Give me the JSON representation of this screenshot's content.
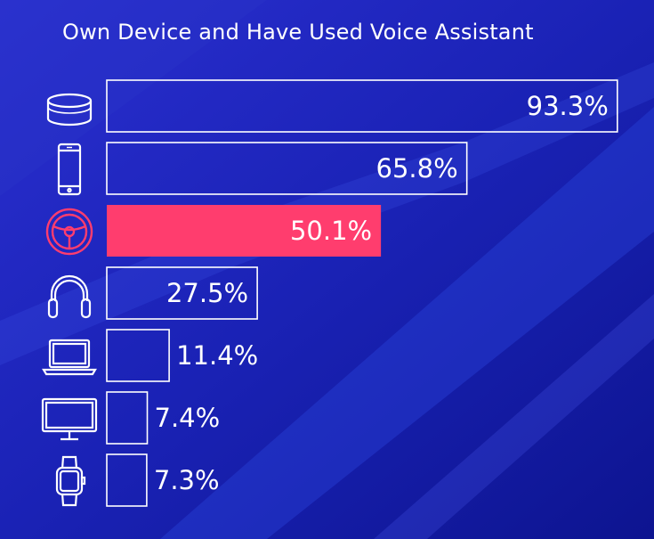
{
  "chart_data": {
    "type": "bar",
    "orientation": "horizontal",
    "title": "Own Device and Have Used Voice Assistant",
    "unit": "%",
    "xlim": [
      0,
      100
    ],
    "categories": [
      "Smart speaker",
      "Smartphone",
      "Car",
      "Headphones",
      "Laptop",
      "Smart TV",
      "Smartwatch"
    ],
    "icons": [
      "smart-speaker-icon",
      "smartphone-icon",
      "steering-wheel-icon",
      "headphones-icon",
      "laptop-icon",
      "monitor-icon",
      "smartwatch-icon"
    ],
    "values": [
      93.3,
      65.8,
      50.1,
      27.5,
      11.4,
      7.4,
      7.3
    ],
    "labels": [
      "93.3%",
      "65.8%",
      "50.1%",
      "27.5%",
      "11.4%",
      "7.4%",
      "7.3%"
    ],
    "highlight_index": 2
  },
  "colors": {
    "background": "#1a1fb8",
    "outline": "#ffffff",
    "highlight": "#ff3d6e",
    "text": "#ffffff"
  }
}
